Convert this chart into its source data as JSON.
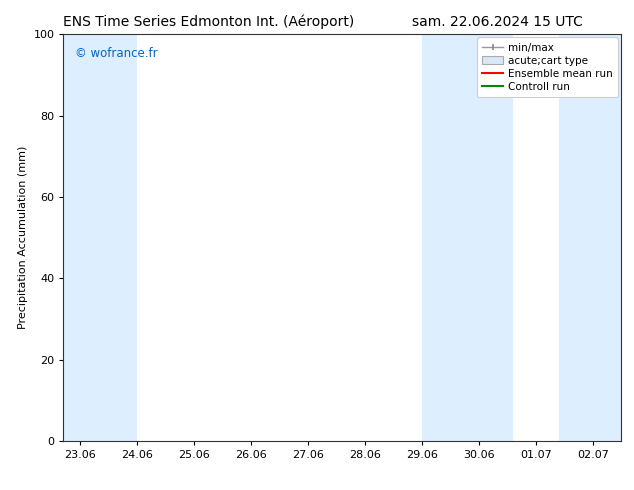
{
  "title_left": "ENS Time Series Edmonton Int. (Aéroport)",
  "title_right": "sam. 22.06.2024 15 UTC",
  "ylabel": "Precipitation Accumulation (mm)",
  "ylim": [
    0,
    100
  ],
  "bg_color": "#ffffff",
  "plot_bg_color": "#ffffff",
  "watermark": "© wofrance.fr",
  "watermark_color": "#0066cc",
  "x_tick_labels": [
    "23.06",
    "24.06",
    "25.06",
    "26.06",
    "27.06",
    "28.06",
    "29.06",
    "30.06",
    "01.07",
    "02.07"
  ],
  "x_tick_positions": [
    0,
    1,
    2,
    3,
    4,
    5,
    6,
    7,
    8,
    9
  ],
  "yticks": [
    0,
    20,
    40,
    60,
    80,
    100
  ],
  "shaded_regions": [
    {
      "xmin": -0.3,
      "xmax": 1.0,
      "color": "#ddeeff"
    },
    {
      "xmin": 6.0,
      "xmax": 7.6,
      "color": "#ddeeff"
    },
    {
      "xmin": 8.4,
      "xmax": 9.5,
      "color": "#ddeeff"
    }
  ],
  "legend_entries": [
    {
      "label": "min/max",
      "color": "#aaaaaa",
      "type": "errorbar"
    },
    {
      "label": "acute;cart type",
      "color": "#cccccc",
      "type": "fill"
    },
    {
      "label": "Ensemble mean run",
      "color": "#ff0000",
      "type": "line"
    },
    {
      "label": "Controll run",
      "color": "#008800",
      "type": "line"
    }
  ],
  "title_fontsize": 10,
  "axis_fontsize": 8,
  "tick_fontsize": 8,
  "legend_fontsize": 7.5
}
